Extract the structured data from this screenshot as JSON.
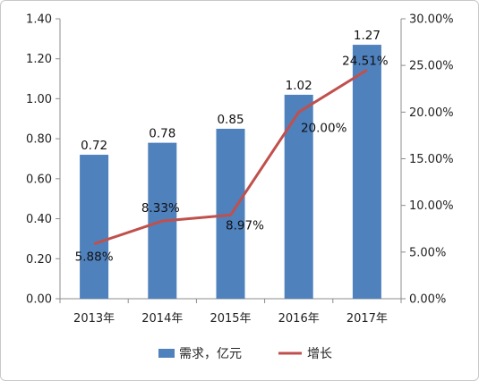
{
  "chart_data": {
    "type": "bar",
    "categories": [
      "2013年",
      "2014年",
      "2015年",
      "2016年",
      "2017年"
    ],
    "series": [
      {
        "name": "需求，亿元",
        "type": "bar",
        "axis": "left",
        "values": [
          0.72,
          0.78,
          0.85,
          1.02,
          1.27
        ],
        "labels": [
          "0.72",
          "0.78",
          "0.85",
          "1.02",
          "1.27"
        ],
        "color": "#4f81bd"
      },
      {
        "name": "增长",
        "type": "line",
        "axis": "right",
        "values": [
          5.88,
          8.33,
          8.97,
          20.0,
          24.51
        ],
        "labels": [
          "5.88%",
          "8.33%",
          "8.97%",
          "20.00%",
          "24.51%"
        ],
        "color": "#c0504d"
      }
    ],
    "y_left": {
      "range": [
        0,
        1.4
      ],
      "ticks": [
        "0.00",
        "0.20",
        "0.40",
        "0.60",
        "0.80",
        "1.00",
        "1.20",
        "1.40"
      ]
    },
    "y_right": {
      "range": [
        0,
        30
      ],
      "ticks": [
        "0.00%",
        "5.00%",
        "10.00%",
        "15.00%",
        "20.00%",
        "25.00%",
        "30.00%"
      ]
    },
    "grid": false,
    "legend": "bottom"
  }
}
